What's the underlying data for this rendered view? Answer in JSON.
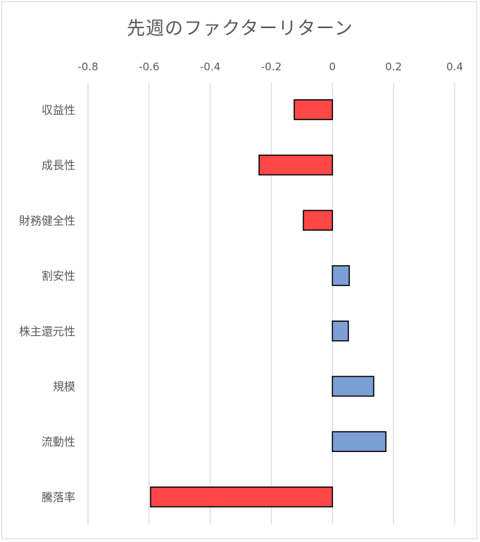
{
  "chart_data": {
    "type": "bar",
    "orientation": "horizontal",
    "title": "先週のファクターリターン",
    "xlabel": "",
    "ylabel": "",
    "xlim": [
      -0.8,
      0.4
    ],
    "xticks": [
      "-0.8",
      "-0.6",
      "-0.4",
      "-0.2",
      "0",
      "0.2",
      "0.4"
    ],
    "xtick_values": [
      -0.8,
      -0.6,
      -0.4,
      -0.2,
      0,
      0.2,
      0.4
    ],
    "grid": "vertical",
    "categories": [
      "収益性",
      "成長性",
      "財務健全性",
      "割安性",
      "株主還元性",
      "規模",
      "流動性",
      "騰落率"
    ],
    "values": [
      -0.125,
      -0.24,
      -0.095,
      0.055,
      0.052,
      0.135,
      0.175,
      -0.595
    ],
    "colors": {
      "negative": "#ff4747",
      "positive": "#7c9fd6",
      "outline": "#000000",
      "grid": "#d9d9d9",
      "text": "#595959"
    }
  }
}
